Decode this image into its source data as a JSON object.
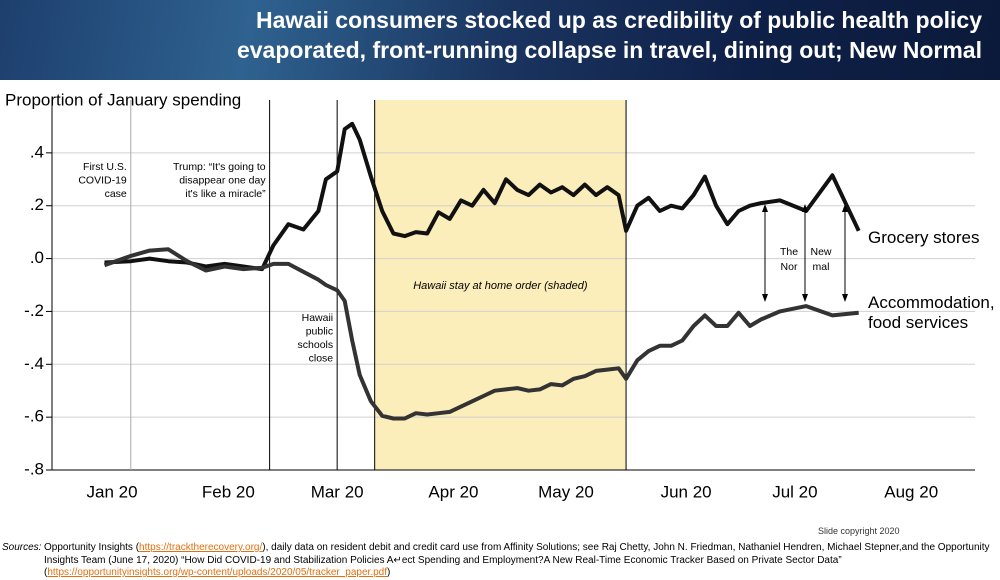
{
  "chart_data": {
    "type": "line",
    "title": [
      "Hawaii consumers stocked up as credibility of public health policy",
      "evaporated, front-running collapse in travel, dining out; New Normal"
    ],
    "y_label": "Proportion of January spending",
    "x": [
      13,
      20,
      25,
      30,
      35,
      40,
      45,
      50,
      55,
      58,
      62,
      66,
      70,
      72,
      75,
      77,
      79,
      81,
      84,
      87,
      90,
      93,
      96,
      99,
      102,
      105,
      108,
      111,
      114,
      117,
      120,
      123,
      126,
      129,
      132,
      135,
      138,
      141,
      144,
      147,
      150,
      152,
      155,
      158,
      161,
      164,
      167,
      170,
      173,
      176,
      179,
      182,
      185,
      188,
      193,
      200,
      207,
      214
    ],
    "series": [
      {
        "name": "Grocery stores",
        "color": "#111111",
        "values": [
          -0.015,
          -0.01,
          0,
          -0.01,
          -0.015,
          -0.03,
          -0.02,
          -0.03,
          -0.04,
          0.05,
          0.13,
          0.11,
          0.18,
          0.3,
          0.33,
          0.49,
          0.51,
          0.45,
          0.31,
          0.18,
          0.095,
          0.085,
          0.1,
          0.095,
          0.175,
          0.15,
          0.22,
          0.2,
          0.26,
          0.21,
          0.3,
          0.26,
          0.24,
          0.28,
          0.25,
          0.27,
          0.24,
          0.28,
          0.24,
          0.27,
          0.24,
          0.105,
          0.2,
          0.23,
          0.18,
          0.2,
          0.19,
          0.24,
          0.31,
          0.2,
          0.13,
          0.18,
          0.2,
          0.21,
          0.22,
          0.18,
          0.315,
          0.105
        ]
      },
      {
        "name": "Accommodation, food services",
        "color": "#333333",
        "values": [
          -0.025,
          0.01,
          0.03,
          0.035,
          -0.01,
          -0.045,
          -0.03,
          -0.04,
          -0.035,
          -0.02,
          -0.02,
          -0.05,
          -0.08,
          -0.1,
          -0.12,
          -0.16,
          -0.31,
          -0.44,
          -0.54,
          -0.595,
          -0.605,
          -0.605,
          -0.585,
          -0.59,
          -0.585,
          -0.58,
          -0.56,
          -0.54,
          -0.52,
          -0.5,
          -0.495,
          -0.49,
          -0.5,
          -0.495,
          -0.475,
          -0.48,
          -0.455,
          -0.445,
          -0.425,
          -0.42,
          -0.415,
          -0.455,
          -0.385,
          -0.35,
          -0.33,
          -0.33,
          -0.31,
          -0.255,
          -0.215,
          -0.255,
          -0.255,
          -0.205,
          -0.255,
          -0.23,
          -0.2,
          -0.18,
          -0.215,
          -0.205
        ]
      }
    ],
    "xlim": [
      -1,
      245
    ],
    "xticks": [
      {
        "value": 15,
        "label": "Jan 20"
      },
      {
        "value": 46,
        "label": "Feb 20"
      },
      {
        "value": 75,
        "label": "Mar 20"
      },
      {
        "value": 106,
        "label": "Apr 20"
      },
      {
        "value": 136,
        "label": "May 20"
      },
      {
        "value": 168,
        "label": "Jun 20"
      },
      {
        "value": 197,
        "label": "Jul 20"
      },
      {
        "value": 228,
        "label": "Aug 20"
      }
    ],
    "ylim": [
      -0.8,
      0.6
    ],
    "yticks": [
      {
        "value": 0.4,
        "label": ".4"
      },
      {
        "value": 0.2,
        "label": ".2"
      },
      {
        "value": 0,
        "label": ".0"
      },
      {
        "value": -0.2,
        "label": "-.2"
      },
      {
        "value": -0.4,
        "label": "-.4"
      },
      {
        "value": -0.6,
        "label": "-.6"
      },
      {
        "value": -0.8,
        "label": "-.8"
      }
    ],
    "grid": true,
    "events": [
      {
        "x": 20,
        "color": "#aaaaaa",
        "label": [
          "First U.S.",
          "COVID-19",
          "case"
        ]
      },
      {
        "x": 57,
        "color": "#000000",
        "label": [
          "Trump: “It's going to",
          "disappear one day",
          "it's like a miracle”"
        ]
      },
      {
        "x": 75,
        "color": "#000000",
        "label": [
          "Hawaii",
          "public",
          "schools",
          "close"
        ]
      }
    ],
    "shade": {
      "x": [
        85,
        152
      ],
      "color": "#fbeebb",
      "label": "Hawaii stay at home order (shaded)"
    },
    "new_normal": [
      "The",
      "Nor",
      "New",
      "mal"
    ]
  },
  "footer": {
    "copyright": "Slide copyright 2020",
    "sources_label": "Sources:",
    "text_1": "Opportunity Insights (",
    "link_1": "https://tracktherecovery.org/",
    "text_2": "), daily data on resident debit and credit card use from Affinity Solutions; see Raj Chetty, John N. Friedman, Nathaniel Hendren, Michael Stepner,and the Opportunity Insights Team (June 17, 2020) “How Did COVID-19 and Stabilization Policies A↵ect Spending and Employment?A New Real-Time Economic Tracker Based on Private Sector Data” (",
    "link_2": "https://opportunityinsights.org/wp-content/uploads/2020/05/tracker_paper.pdf",
    "text_3": ")"
  }
}
